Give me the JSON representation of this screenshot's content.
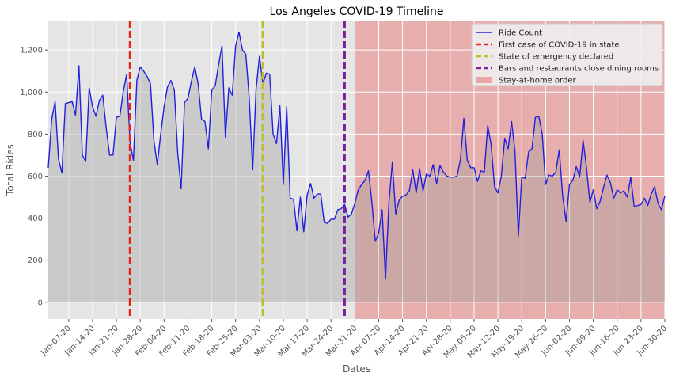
{
  "chart_data": {
    "type": "line",
    "title": "Los Angeles COVID-19 Timeline",
    "xlabel": "Dates",
    "ylabel": "Total Rides",
    "ylim": [
      -80,
      1340
    ],
    "yticks": [
      0,
      200,
      400,
      600,
      800,
      1000,
      1200
    ],
    "ytick_labels": [
      "0",
      "200",
      "400",
      "600",
      "800",
      "1,000",
      "1,200"
    ],
    "x_start": "2020-01-01",
    "x_end": "2020-06-30",
    "xtick_dates": [
      "2020-01-07",
      "2020-01-14",
      "2020-01-21",
      "2020-01-28",
      "2020-02-04",
      "2020-02-11",
      "2020-02-18",
      "2020-02-25",
      "2020-03-03",
      "2020-03-10",
      "2020-03-17",
      "2020-03-24",
      "2020-03-31",
      "2020-04-07",
      "2020-04-14",
      "2020-04-21",
      "2020-04-28",
      "2020-05-05",
      "2020-05-12",
      "2020-05-19",
      "2020-05-26",
      "2020-06-02",
      "2020-06-09",
      "2020-06-16",
      "2020-06-23",
      "2020-06-30"
    ],
    "xtick_labels": [
      "Jan-07-20",
      "Jan-14-20",
      "Jan-21-20",
      "Jan-28-20",
      "Feb-04-20",
      "Feb-11-20",
      "Feb-18-20",
      "Feb-25-20",
      "Mar-03-20",
      "Mar-10-20",
      "Mar-17-20",
      "Mar-24-20",
      "Mar-31-20",
      "Apr-07-20",
      "Apr-14-20",
      "Apr-21-20",
      "Apr-28-20",
      "May-05-20",
      "May-12-20",
      "May-19-20",
      "May-26-20",
      "Jun-02-20",
      "Jun-09-20",
      "Jun-16-20",
      "Jun-23-20",
      "Jun-30-20"
    ],
    "grid": true,
    "legend_position": "top-right",
    "series": [
      {
        "name": "Ride Count",
        "color": "#1f1fe0",
        "x_start": "2020-01-01",
        "step": "1 day",
        "values": [
          640,
          870,
          955,
          680,
          615,
          945,
          950,
          955,
          890,
          1125,
          700,
          670,
          1020,
          930,
          885,
          960,
          985,
          830,
          700,
          700,
          880,
          885,
          1000,
          1085,
          760,
          675,
          1055,
          1120,
          1100,
          1075,
          1040,
          770,
          655,
          800,
          930,
          1025,
          1055,
          1010,
          710,
          540,
          950,
          970,
          1050,
          1120,
          1040,
          870,
          860,
          730,
          1010,
          1030,
          1130,
          1220,
          785,
          1020,
          985,
          1220,
          1285,
          1200,
          1180,
          970,
          630,
          1015,
          1170,
          1040,
          1090,
          1085,
          800,
          755,
          935,
          560,
          930,
          495,
          490,
          340,
          500,
          335,
          510,
          565,
          495,
          515,
          515,
          380,
          375,
          395,
          395,
          440,
          445,
          465,
          405,
          420,
          470,
          535,
          560,
          580,
          625,
          475,
          290,
          330,
          440,
          110,
          475,
          665,
          420,
          485,
          505,
          510,
          530,
          630,
          520,
          635,
          530,
          610,
          600,
          655,
          565,
          650,
          620,
          600,
          595,
          595,
          600,
          680,
          875,
          675,
          640,
          640,
          575,
          625,
          620,
          840,
          750,
          550,
          520,
          600,
          780,
          730,
          860,
          720,
          315,
          595,
          590,
          715,
          730,
          880,
          885,
          800,
          560,
          605,
          600,
          620,
          725,
          505,
          385,
          560,
          580,
          645,
          595,
          770,
          640,
          475,
          535,
          445,
          480,
          545,
          605,
          570,
          495,
          535,
          520,
          530,
          500,
          595,
          455,
          460,
          465,
          495,
          460,
          515,
          550,
          470,
          440,
          505
        ]
      }
    ],
    "vlines": [
      {
        "name": "First case of COVID-19 in state",
        "date": "2020-01-25",
        "color": "#e8221a"
      },
      {
        "name": "State of emergency declared",
        "date": "2020-03-04",
        "color": "#bfbf20"
      },
      {
        "name": "Bars and restaurants close dining rooms",
        "date": "2020-03-28",
        "color": "#7b1fa2"
      }
    ],
    "spans": [
      {
        "name": "Stay-at-home order",
        "start": "2020-03-31",
        "end": "2020-06-30",
        "color": "#e87a78"
      }
    ]
  }
}
